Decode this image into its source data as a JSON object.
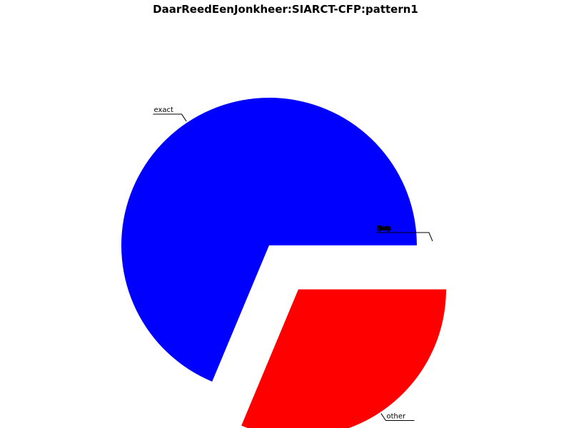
{
  "chart_data": {
    "type": "pie",
    "title": "DaarReedEenJonkheer:SIARCT-CFP:pattern1",
    "slices": [
      {
        "label": "exact",
        "value": 0.687,
        "color": "#0000ff"
      },
      {
        "label": "other",
        "value": 0.313,
        "color": "#ff0000"
      },
      {
        "label": "t",
        "value": 0,
        "color": "#000000"
      },
      {
        "label": "to",
        "value": 0,
        "color": "#000000"
      },
      {
        "label": "tra",
        "value": 0,
        "color": "#000000"
      },
      {
        "label": "Rel",
        "value": 0,
        "color": "#000000"
      },
      {
        "label": "Aug",
        "value": 0,
        "color": "#000000"
      },
      {
        "label": "Dim",
        "value": 0,
        "color": "#000000"
      },
      {
        "label": "Inv",
        "value": 0,
        "color": "#000000"
      },
      {
        "label": "gen",
        "value": 0,
        "color": "#000000"
      },
      {
        "label": "seq",
        "value": 0,
        "color": "#000000"
      },
      {
        "label": "Ext",
        "value": 0,
        "color": "#000000"
      },
      {
        "label": "Del",
        "value": 0,
        "color": "#000000"
      }
    ]
  }
}
